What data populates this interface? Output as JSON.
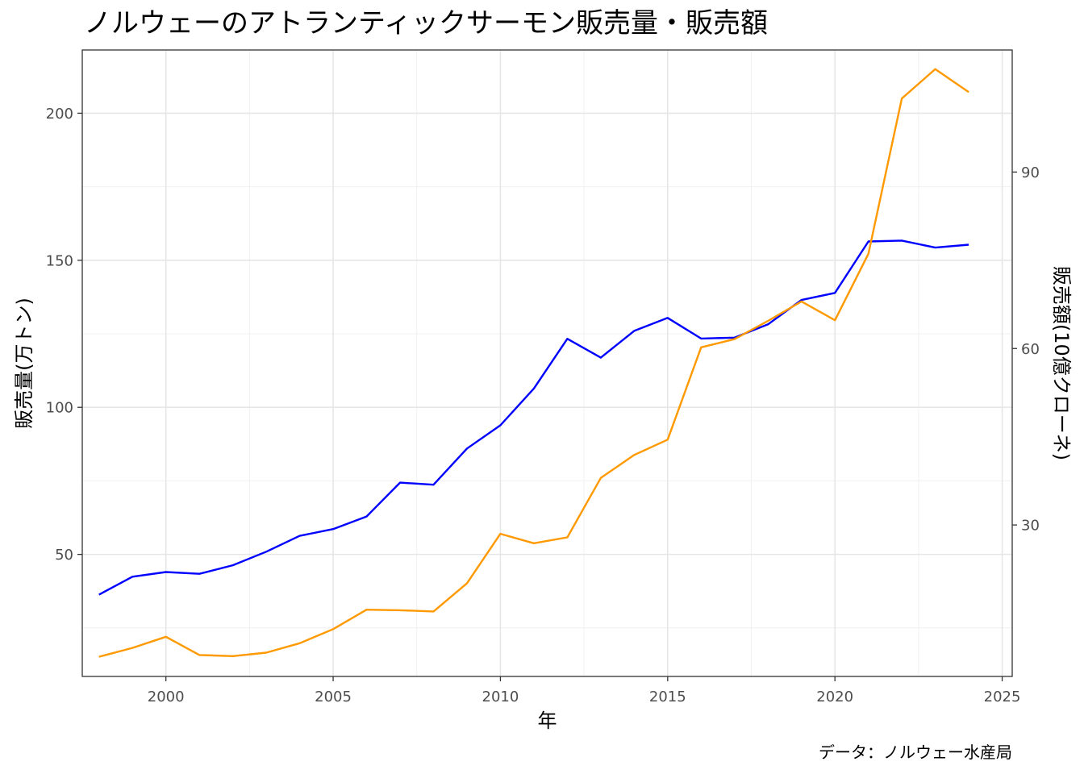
{
  "chart_data": {
    "type": "line",
    "title": "ノルウェーのアトランティックサーモン販売量・販売額",
    "xlabel": "年",
    "ylabel": "販売量(万トン)",
    "y2label": "販売額(10億クローネ)",
    "caption": "データ：ノルウェー水産局",
    "xlim": [
      1997.5,
      2025.3
    ],
    "ylim": [
      8.5,
      221.5
    ],
    "y2_scale_factor": 2,
    "x_ticks": [
      2000,
      2005,
      2010,
      2015,
      2020,
      2025
    ],
    "y_ticks": [
      50,
      100,
      150,
      200
    ],
    "y2_ticks": [
      30,
      60,
      90
    ],
    "grid": true,
    "x": [
      1998,
      1999,
      2000,
      2001,
      2002,
      2003,
      2004,
      2005,
      2006,
      2007,
      2008,
      2009,
      2010,
      2011,
      2012,
      2013,
      2014,
      2015,
      2016,
      2017,
      2018,
      2019,
      2020,
      2021,
      2022,
      2023,
      2024
    ],
    "series": [
      {
        "axis": "left",
        "color": "#0000ff",
        "values": [
          36.3,
          42.4,
          44.0,
          43.4,
          46.3,
          50.9,
          56.3,
          58.6,
          62.9,
          74.4,
          73.7,
          86.0,
          93.9,
          106.4,
          123.3,
          116.9,
          126.0,
          130.4,
          123.4,
          123.7,
          128.2,
          136.5,
          138.9,
          156.4,
          156.7,
          154.3,
          155.3
        ]
      },
      {
        "axis": "right",
        "color": "#ff9900",
        "values": [
          7.6,
          9.1,
          11.0,
          7.9,
          7.7,
          8.3,
          9.9,
          12.3,
          15.6,
          15.5,
          15.3,
          20.1,
          28.5,
          26.9,
          27.9,
          38.0,
          41.9,
          44.5,
          60.2,
          61.6,
          64.7,
          68.0,
          64.8,
          76.1,
          102.5,
          107.5,
          103.6
        ]
      }
    ]
  }
}
